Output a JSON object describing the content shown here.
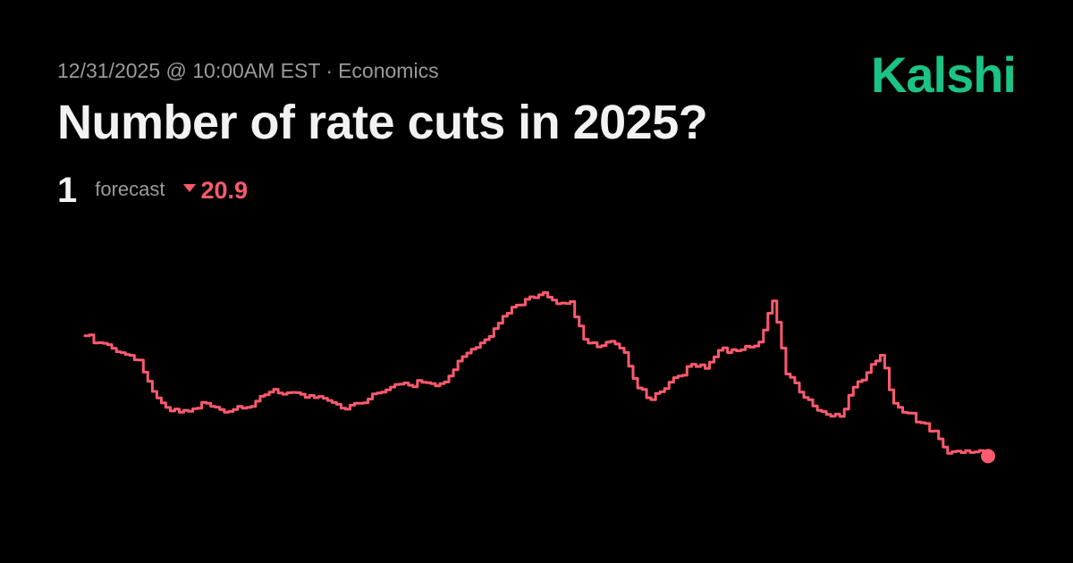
{
  "meta": {
    "date": "12/31/2025 @ 10:00AM EST",
    "separator": "·",
    "category": "Economics"
  },
  "brand": "Kalshi",
  "title": "Number of rate cuts in 2025?",
  "forecast": {
    "value": "1",
    "label": "forecast",
    "change": "20.9",
    "change_direction": "down",
    "change_icon": "caret-down-icon"
  },
  "colors": {
    "background": "#000000",
    "brand": "#1ac386",
    "series": "#ff5a6e",
    "muted_text": "#9a9a9a",
    "primary_text": "#f2f2f2"
  },
  "chart_data": {
    "type": "line",
    "title": "",
    "xlabel": "",
    "ylabel": "",
    "grid": false,
    "axes_visible": false,
    "end_marker": true,
    "ylim": [
      0,
      4.2
    ],
    "series": [
      {
        "values": [
          2.65,
          2.55,
          2.47,
          2.38,
          2.3,
          1.85,
          1.62,
          1.55,
          1.6,
          1.68,
          1.59,
          1.59,
          1.62,
          1.78,
          1.88,
          1.83,
          1.81,
          1.76,
          1.72,
          1.61,
          1.68,
          1.74,
          1.84,
          1.95,
          1.94,
          1.98,
          1.93,
          2.07,
          2.35,
          2.48,
          2.64,
          2.93,
          3.09,
          3.21,
          3.27,
          3.11,
          3.14,
          2.6,
          2.49,
          2.57,
          2.41,
          1.9,
          1.73,
          1.89,
          2.07,
          2.24,
          2.18,
          2.44,
          2.45,
          2.5,
          2.56,
          3.15,
          2.1,
          1.84,
          1.64,
          1.52,
          1.49,
          1.91,
          2.12,
          2.37,
          1.68,
          1.54,
          1.4,
          1.28,
          0.96,
          0.97,
          0.98,
          0.92
        ]
      }
    ]
  }
}
